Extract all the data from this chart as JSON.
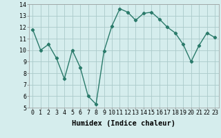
{
  "x": [
    0,
    1,
    2,
    3,
    4,
    5,
    6,
    7,
    8,
    9,
    10,
    11,
    12,
    13,
    14,
    15,
    16,
    17,
    18,
    19,
    20,
    21,
    22,
    23
  ],
  "y": [
    11.8,
    10.0,
    10.5,
    9.3,
    7.5,
    10.0,
    8.5,
    6.0,
    5.3,
    9.9,
    12.1,
    13.6,
    13.3,
    12.6,
    13.2,
    13.3,
    12.7,
    12.0,
    11.5,
    10.5,
    9.0,
    10.4,
    11.5,
    11.1
  ],
  "xlabel": "Humidex (Indice chaleur)",
  "line_color": "#2a7a6a",
  "bg_color": "#d5eded",
  "grid_color": "#aacaca",
  "ylim": [
    5,
    14
  ],
  "xlim": [
    -0.5,
    23.5
  ],
  "xticks": [
    0,
    1,
    2,
    3,
    4,
    5,
    6,
    7,
    8,
    9,
    10,
    11,
    12,
    13,
    14,
    15,
    16,
    17,
    18,
    19,
    20,
    21,
    22,
    23
  ],
  "yticks": [
    5,
    6,
    7,
    8,
    9,
    10,
    11,
    12,
    13,
    14
  ],
  "tick_fontsize": 6.0,
  "xlabel_fontsize": 7.5
}
